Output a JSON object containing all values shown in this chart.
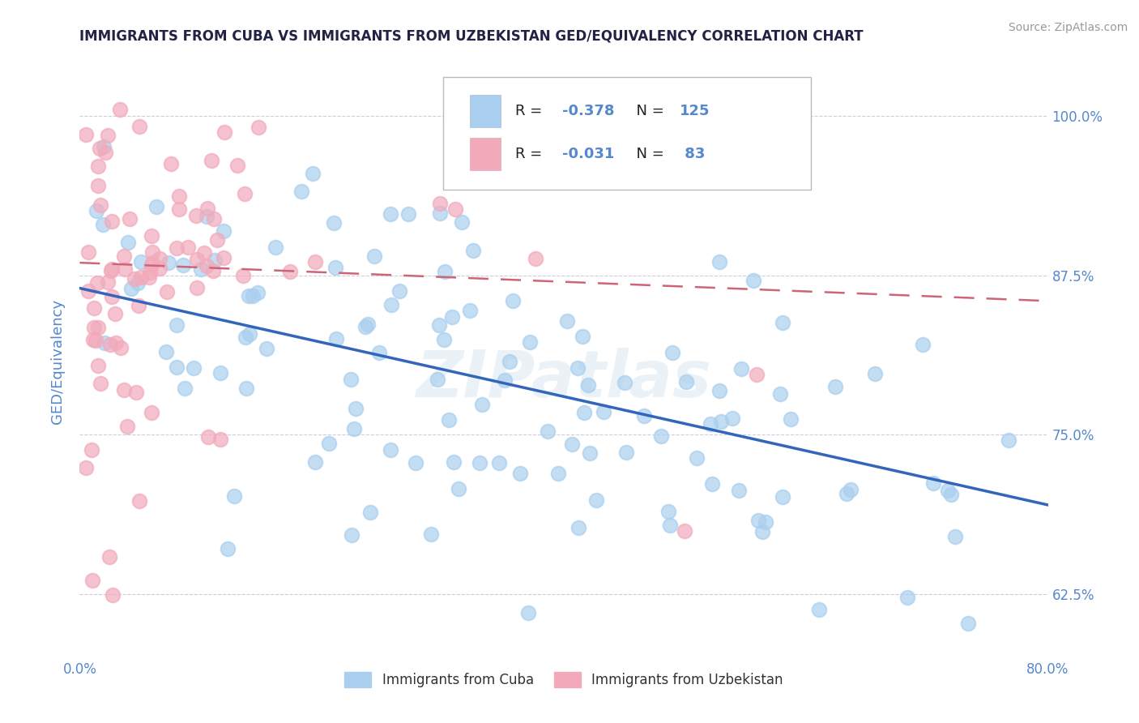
{
  "title": "IMMIGRANTS FROM CUBA VS IMMIGRANTS FROM UZBEKISTAN GED/EQUIVALENCY CORRELATION CHART",
  "source": "Source: ZipAtlas.com",
  "ylabel": "GED/Equivalency",
  "yticks": [
    0.625,
    0.75,
    0.875,
    1.0
  ],
  "ytick_labels": [
    "62.5%",
    "75.0%",
    "87.5%",
    "100.0%"
  ],
  "xmin": 0.0,
  "xmax": 0.8,
  "ymin": 0.575,
  "ymax": 1.04,
  "R_cuba": -0.378,
  "N_cuba": 125,
  "R_uzbekistan": -0.031,
  "N_uzbekistan": 83,
  "color_cuba": "#aacfee",
  "color_uzbekistan": "#f2aabb",
  "trendline_cuba": "#3366bb",
  "trendline_uzbekistan": "#cc6677",
  "legend_label_cuba": "Immigrants from Cuba",
  "legend_label_uzbekistan": "Immigrants from Uzbekistan",
  "title_color": "#222244",
  "axis_color": "#5588cc",
  "source_color": "#999999",
  "watermark": "ZIPatlas",
  "cuba_trend_x0": 0.0,
  "cuba_trend_x1": 0.8,
  "cuba_trend_y0": 0.865,
  "cuba_trend_y1": 0.695,
  "uzbek_trend_x0": 0.0,
  "uzbek_trend_x1": 0.8,
  "uzbek_trend_y0": 0.885,
  "uzbek_trend_y1": 0.855
}
